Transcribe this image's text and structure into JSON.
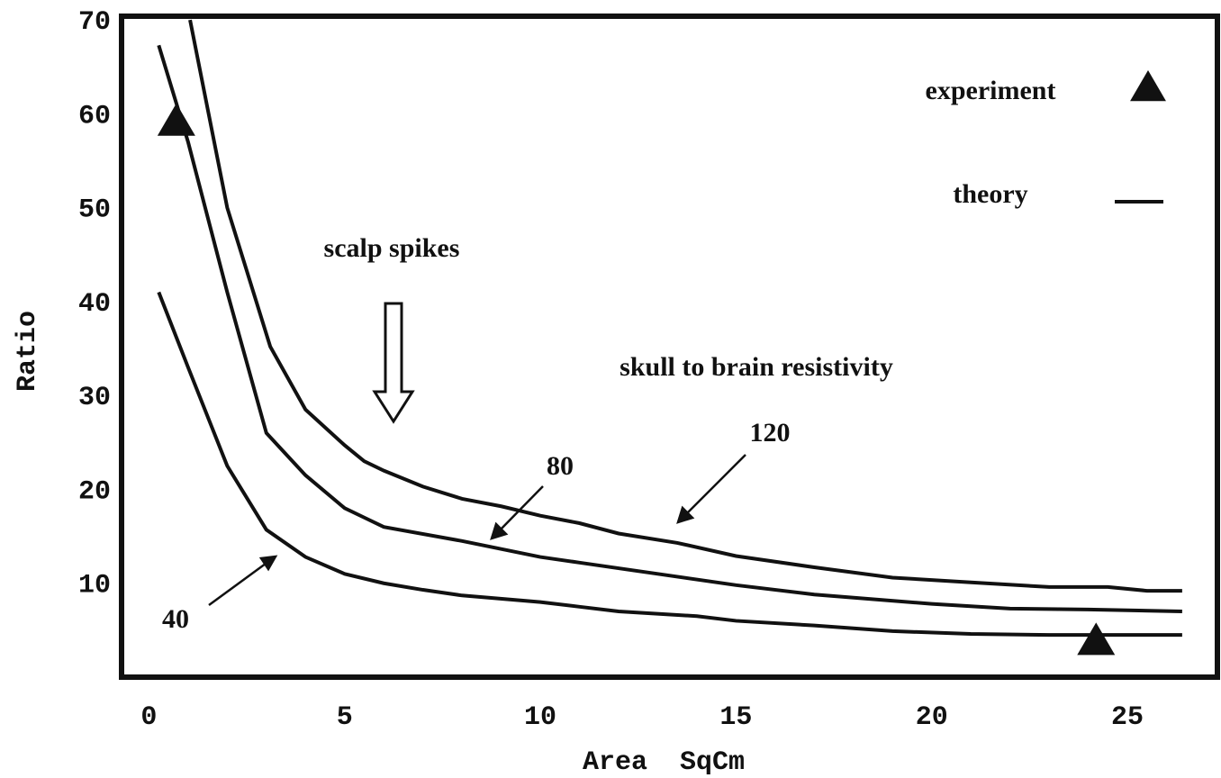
{
  "chart_data": {
    "type": "line",
    "x_label": "Area  SqCm",
    "y_label": "Ratio",
    "xlim": [
      -0.7,
      27.3
    ],
    "ylim": [
      0,
      70.4
    ],
    "xticks": [
      0,
      5,
      10,
      15,
      20,
      25
    ],
    "yticks": [
      10,
      20,
      30,
      40,
      50,
      60,
      70
    ],
    "grid": false,
    "series": [
      {
        "name": "40",
        "color": "#111111",
        "x": [
          0.25,
          1,
          2,
          3,
          4,
          5,
          6,
          7,
          8,
          10,
          11,
          12,
          14,
          15,
          17,
          19,
          21,
          23,
          26.4
        ],
        "values": [
          41,
          33,
          22.5,
          15.7,
          12.8,
          11,
          10,
          9.3,
          8.7,
          8,
          7.5,
          7,
          6.5,
          6,
          5.5,
          4.9,
          4.6,
          4.5,
          4.5
        ]
      },
      {
        "name": "80",
        "color": "#111111",
        "x": [
          0.25,
          1,
          2,
          3,
          4,
          5,
          5.5,
          6,
          8,
          10,
          11,
          13,
          15,
          17,
          20,
          22,
          24,
          26.4
        ],
        "values": [
          67.3,
          57,
          41,
          26,
          21.5,
          18,
          17,
          16,
          14.5,
          12.8,
          12.2,
          11,
          9.8,
          8.8,
          7.8,
          7.3,
          7.2,
          7
        ]
      },
      {
        "name": "120",
        "color": "#111111",
        "x": [
          1.05,
          2,
          3.1,
          4,
          5,
          5.5,
          6,
          7,
          8,
          9,
          10,
          11,
          12,
          13.5,
          15,
          17,
          19,
          21,
          23,
          24.5,
          25.5,
          26.4
        ],
        "values": [
          70,
          50,
          35.2,
          28.5,
          24.7,
          23,
          22,
          20.3,
          19,
          18.2,
          17.2,
          16.4,
          15.3,
          14.3,
          12.9,
          11.7,
          10.6,
          10.1,
          9.6,
          9.6,
          9.2,
          9.2
        ]
      }
    ],
    "experiment": {
      "name": "experiment",
      "color": "#111111",
      "marker": "triangle",
      "x": [
        0.7,
        24.2
      ],
      "values": [
        59.2,
        3.9
      ]
    },
    "legend": [
      {
        "label": "experiment",
        "marker": "triangle"
      },
      {
        "label": "theory",
        "marker": "line"
      }
    ],
    "annotations": [
      "scalp spikes",
      "skull to brain resistivity"
    ]
  }
}
